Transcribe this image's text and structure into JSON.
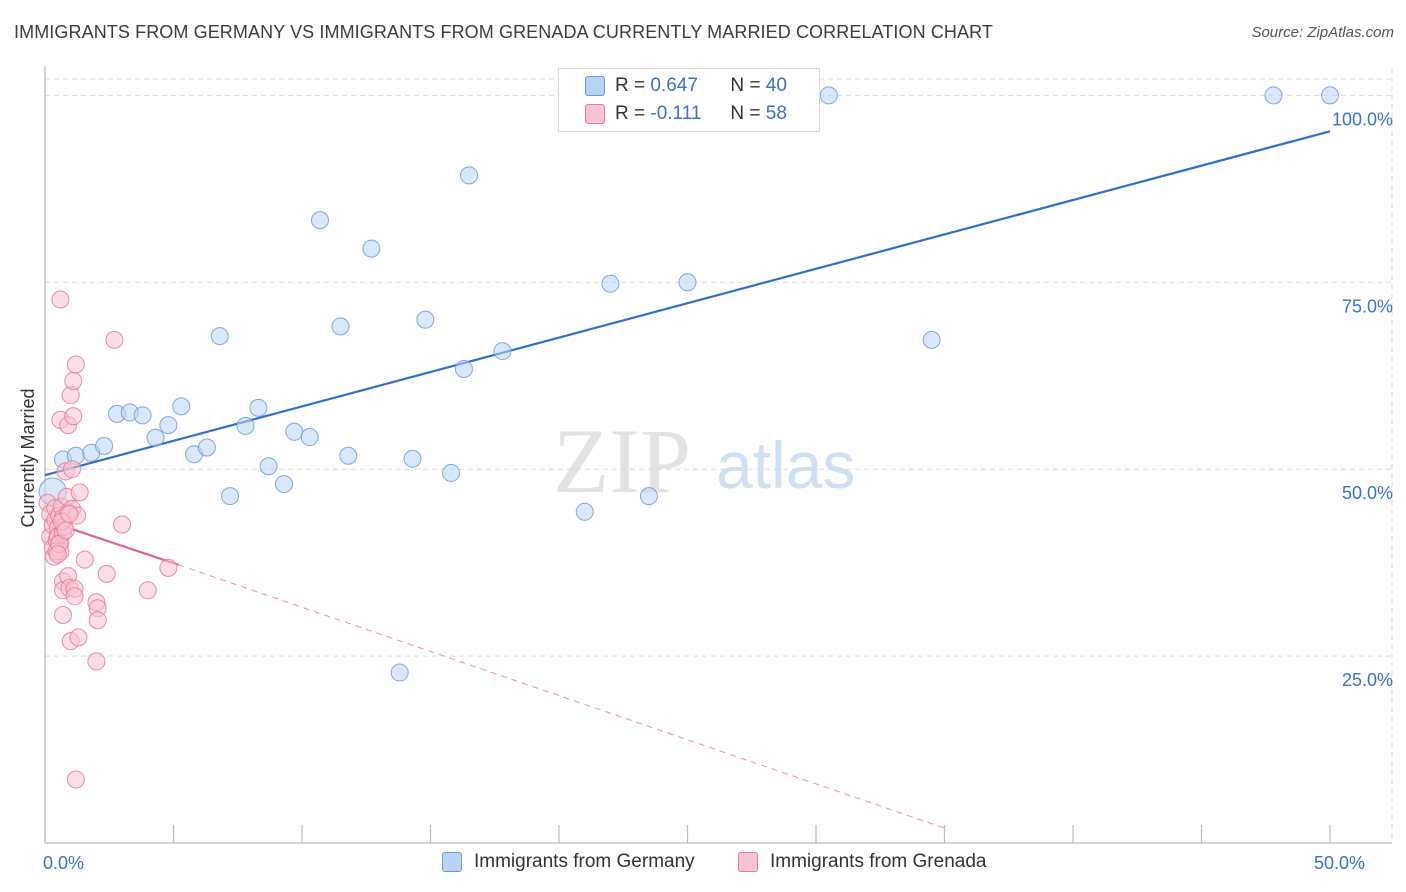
{
  "title": "IMMIGRANTS FROM GERMANY VS IMMIGRANTS FROM GRENADA CURRENTLY MARRIED CORRELATION CHART",
  "source": "Source: ZipAtlas.com",
  "watermark": {
    "zip": "ZIP",
    "atlas": "atlas"
  },
  "colors": {
    "germany_fill": "#b9d3f5",
    "germany_stroke": "#6c9bd8",
    "germany_line": "#2f6fcc",
    "grenada_fill": "#f8c3d2",
    "grenada_stroke": "#e8799c",
    "grenada_line": "#e0628c",
    "tick_text": "#3a72c6",
    "grid": "#d9d9d9"
  },
  "legend": {
    "items": [
      {
        "r_label": "R = ",
        "r_value": "0.647",
        "n_label": "N = ",
        "n_value": "40"
      },
      {
        "r_label": "R = ",
        "r_value": "-0.111",
        "n_label": "N = ",
        "n_value": "58"
      }
    ]
  },
  "bottom_legend": [
    "Immigrants from Germany",
    "Immigrants from Grenada"
  ],
  "chart_data": {
    "type": "scatter",
    "title": "IMMIGRANTS FROM GERMANY VS IMMIGRANTS FROM GRENADA CURRENTLY MARRIED CORRELATION CHART",
    "xlabel": "",
    "ylabel": "Currently Married",
    "xlim": [
      0,
      50
    ],
    "ylim": [
      0,
      105
    ],
    "x_tick_labels": [
      {
        "value": 0,
        "label": "0.0%"
      },
      {
        "value": 50,
        "label": "50.0%"
      }
    ],
    "x_minor_ticks": [
      0,
      5,
      10,
      15,
      20,
      25,
      30,
      35,
      40,
      45,
      50
    ],
    "y_ticks": [
      {
        "value": 25,
        "label": "25.0%"
      },
      {
        "value": 50,
        "label": "50.0%"
      },
      {
        "value": 75,
        "label": "75.0%"
      },
      {
        "value": 100,
        "label": "100.0%"
      }
    ],
    "grid": true,
    "series": [
      {
        "name": "Immigrants from Germany",
        "R": 0.647,
        "N": 40,
        "trend": {
          "x0": 0,
          "y0": 49.2,
          "x1": 50,
          "y1": 95.2,
          "dashed_to": null
        },
        "points": [
          [
            0.3,
            47.0,
            1.6
          ],
          [
            0.7,
            51.3,
            1
          ],
          [
            1.2,
            51.8,
            1
          ],
          [
            1.8,
            52.2,
            1
          ],
          [
            2.3,
            53.1,
            1
          ],
          [
            2.8,
            57.4,
            1
          ],
          [
            3.3,
            57.6,
            1
          ],
          [
            3.8,
            57.2,
            1
          ],
          [
            4.3,
            54.2,
            1
          ],
          [
            4.8,
            55.9,
            1
          ],
          [
            5.3,
            58.4,
            1
          ],
          [
            5.8,
            52.0,
            1
          ],
          [
            6.3,
            52.9,
            1
          ],
          [
            6.8,
            67.8,
            1
          ],
          [
            7.2,
            46.4,
            1
          ],
          [
            7.8,
            55.8,
            1
          ],
          [
            8.3,
            58.2,
            1
          ],
          [
            8.7,
            50.4,
            1
          ],
          [
            9.3,
            48.0,
            1
          ],
          [
            9.7,
            55.0,
            1
          ],
          [
            10.3,
            54.3,
            1
          ],
          [
            10.7,
            83.3,
            1
          ],
          [
            11.5,
            69.1,
            1
          ],
          [
            11.8,
            51.8,
            1
          ],
          [
            12.7,
            79.5,
            1
          ],
          [
            13.8,
            22.8,
            1
          ],
          [
            14.3,
            51.4,
            1
          ],
          [
            14.8,
            70.0,
            1
          ],
          [
            15.8,
            49.5,
            1
          ],
          [
            16.3,
            63.4,
            1
          ],
          [
            16.5,
            89.3,
            1
          ],
          [
            17.8,
            65.8,
            1
          ],
          [
            21.0,
            44.3,
            1
          ],
          [
            22.0,
            74.8,
            1
          ],
          [
            23.5,
            46.4,
            1
          ],
          [
            25.0,
            75.0,
            1
          ],
          [
            30.5,
            100.0,
            1
          ],
          [
            34.5,
            67.3,
            1
          ],
          [
            47.8,
            100.0,
            1
          ],
          [
            50.0,
            100.0,
            1
          ]
        ]
      },
      {
        "name": "Immigrants from Grenada",
        "R": -0.111,
        "N": 58,
        "trend": {
          "x0": 0,
          "y0": 43.2,
          "x1": 5.2,
          "y1": 37.2,
          "dashed_to": {
            "x": 35,
            "y": 2.0
          }
        },
        "points": [
          [
            0.1,
            45.5,
            1
          ],
          [
            0.2,
            44.0,
            1
          ],
          [
            0.2,
            41.0,
            1
          ],
          [
            0.3,
            39.5,
            1
          ],
          [
            0.3,
            42.5,
            1
          ],
          [
            0.35,
            38.3,
            1
          ],
          [
            0.4,
            44.8,
            1
          ],
          [
            0.4,
            43.2,
            1
          ],
          [
            0.45,
            40.5,
            1
          ],
          [
            0.5,
            42.1,
            1
          ],
          [
            0.5,
            41.0,
            1
          ],
          [
            0.55,
            43.8,
            1
          ],
          [
            0.6,
            40.2,
            1
          ],
          [
            0.6,
            39.0,
            1
          ],
          [
            0.65,
            45.0,
            1
          ],
          [
            0.7,
            41.5,
            1
          ],
          [
            0.7,
            43.5,
            1
          ],
          [
            0.75,
            42.3,
            1
          ],
          [
            0.6,
            72.7,
            1
          ],
          [
            0.6,
            56.6,
            1
          ],
          [
            0.7,
            35.0,
            1
          ],
          [
            0.7,
            33.8,
            1
          ],
          [
            0.7,
            30.5,
            1
          ],
          [
            0.8,
            49.7,
            1
          ],
          [
            0.85,
            46.3,
            1
          ],
          [
            0.9,
            44.2,
            1
          ],
          [
            0.9,
            55.9,
            1
          ],
          [
            0.9,
            35.7,
            1
          ],
          [
            0.95,
            34.1,
            1
          ],
          [
            1.0,
            59.9,
            1
          ],
          [
            1.0,
            27.0,
            1
          ],
          [
            1.05,
            44.7,
            1
          ],
          [
            1.05,
            50.0,
            1
          ],
          [
            1.1,
            61.8,
            1
          ],
          [
            1.1,
            57.1,
            1
          ],
          [
            1.15,
            34.0,
            1
          ],
          [
            1.15,
            33.0,
            1
          ],
          [
            1.2,
            64.0,
            1
          ],
          [
            1.2,
            8.5,
            1
          ],
          [
            1.25,
            43.8,
            1
          ],
          [
            1.3,
            27.5,
            1
          ],
          [
            1.35,
            46.9,
            1
          ],
          [
            1.55,
            37.9,
            1
          ],
          [
            2.0,
            24.3,
            1
          ],
          [
            2.0,
            32.2,
            1
          ],
          [
            2.05,
            31.4,
            1
          ],
          [
            2.05,
            29.8,
            1
          ],
          [
            2.4,
            36.0,
            1
          ],
          [
            2.7,
            67.3,
            1
          ],
          [
            3.0,
            42.6,
            1
          ],
          [
            4.0,
            33.8,
            1
          ],
          [
            4.8,
            36.8,
            1
          ],
          [
            0.45,
            39.0,
            1
          ],
          [
            0.55,
            40.0,
            1
          ],
          [
            0.65,
            43.0,
            1
          ],
          [
            0.8,
            41.8,
            1
          ],
          [
            0.5,
            38.6,
            1
          ],
          [
            0.95,
            44.0,
            1
          ]
        ]
      }
    ]
  }
}
